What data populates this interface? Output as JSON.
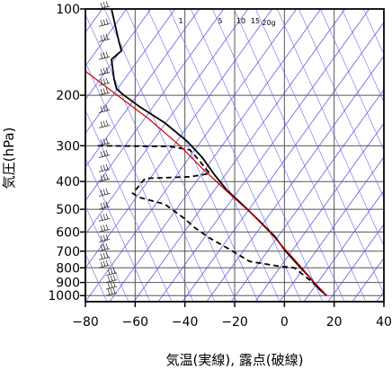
{
  "chart_data": {
    "type": "line",
    "title": "",
    "xlabel": "気温(実線), 露点(破線)",
    "ylabel": "気圧(hPa)",
    "xlim": [
      -80,
      40
    ],
    "ylim": [
      1050,
      100
    ],
    "y_scale": "log",
    "x_ticks": [
      -80,
      -60,
      -40,
      -20,
      0,
      20,
      40
    ],
    "x_tick_labels": [
      "−80",
      "−60",
      "−40",
      "−20",
      "0",
      "20",
      "40"
    ],
    "y_ticks": [
      100,
      200,
      300,
      400,
      500,
      600,
      700,
      800,
      900,
      1000
    ],
    "y_tick_labels": [
      "100",
      "200",
      "300",
      "400",
      "500",
      "600",
      "700",
      "800",
      "900",
      "1000"
    ],
    "grid": true,
    "mixing_ratio_labels": [
      "1",
      "5",
      "10",
      "15",
      "20g"
    ],
    "series": [
      {
        "style": "solid",
        "color": "#000000",
        "points": [
          {
            "t": -69.5,
            "p": 100
          },
          {
            "t": -66.5,
            "p": 130
          },
          {
            "t": -65.5,
            "p": 140
          },
          {
            "t": -69.5,
            "p": 150
          },
          {
            "t": -68.5,
            "p": 175
          },
          {
            "t": -67.5,
            "p": 190
          },
          {
            "t": -64.5,
            "p": 200
          },
          {
            "t": -58,
            "p": 220
          },
          {
            "t": -48,
            "p": 250
          },
          {
            "t": -39,
            "p": 290
          },
          {
            "t": -33,
            "p": 330
          },
          {
            "t": -28,
            "p": 380
          },
          {
            "t": -23,
            "p": 430
          },
          {
            "t": -17,
            "p": 480
          },
          {
            "t": -10,
            "p": 550
          },
          {
            "t": -4,
            "p": 620
          },
          {
            "t": 0.5,
            "p": 700
          },
          {
            "t": 6,
            "p": 790
          },
          {
            "t": 10,
            "p": 860
          },
          {
            "t": 14,
            "p": 950
          },
          {
            "t": 17,
            "p": 1000
          }
        ]
      },
      {
        "style": "dashed",
        "color": "#000000",
        "points": [
          {
            "t": -75,
            "p": 300
          },
          {
            "t": -46,
            "p": 302
          },
          {
            "t": -38,
            "p": 310
          },
          {
            "t": -34,
            "p": 340
          },
          {
            "t": -30,
            "p": 375
          },
          {
            "t": -38,
            "p": 385
          },
          {
            "t": -56,
            "p": 390
          },
          {
            "t": -61,
            "p": 440
          },
          {
            "t": -58,
            "p": 455
          },
          {
            "t": -48,
            "p": 480
          },
          {
            "t": -40,
            "p": 540
          },
          {
            "t": -36,
            "p": 580
          },
          {
            "t": -30,
            "p": 630
          },
          {
            "t": -22,
            "p": 690
          },
          {
            "t": -14,
            "p": 760
          },
          {
            "t": -2,
            "p": 790
          },
          {
            "t": 4,
            "p": 800
          },
          {
            "t": 10,
            "p": 880
          },
          {
            "t": 15,
            "p": 960
          },
          {
            "t": 17,
            "p": 1000
          }
        ]
      },
      {
        "style": "solid",
        "color": "#cc0000",
        "points": [
          {
            "t": -80,
            "p": 165
          },
          {
            "t": -55,
            "p": 240
          },
          {
            "t": -42,
            "p": 300
          },
          {
            "t": -33,
            "p": 360
          },
          {
            "t": -28,
            "p": 395
          },
          {
            "t": -21,
            "p": 450
          },
          {
            "t": -13,
            "p": 520
          },
          {
            "t": -6,
            "p": 600
          },
          {
            "t": 1,
            "p": 700
          },
          {
            "t": 7,
            "p": 800
          },
          {
            "t": 11,
            "p": 880
          },
          {
            "t": 17,
            "p": 1000
          }
        ]
      }
    ]
  }
}
